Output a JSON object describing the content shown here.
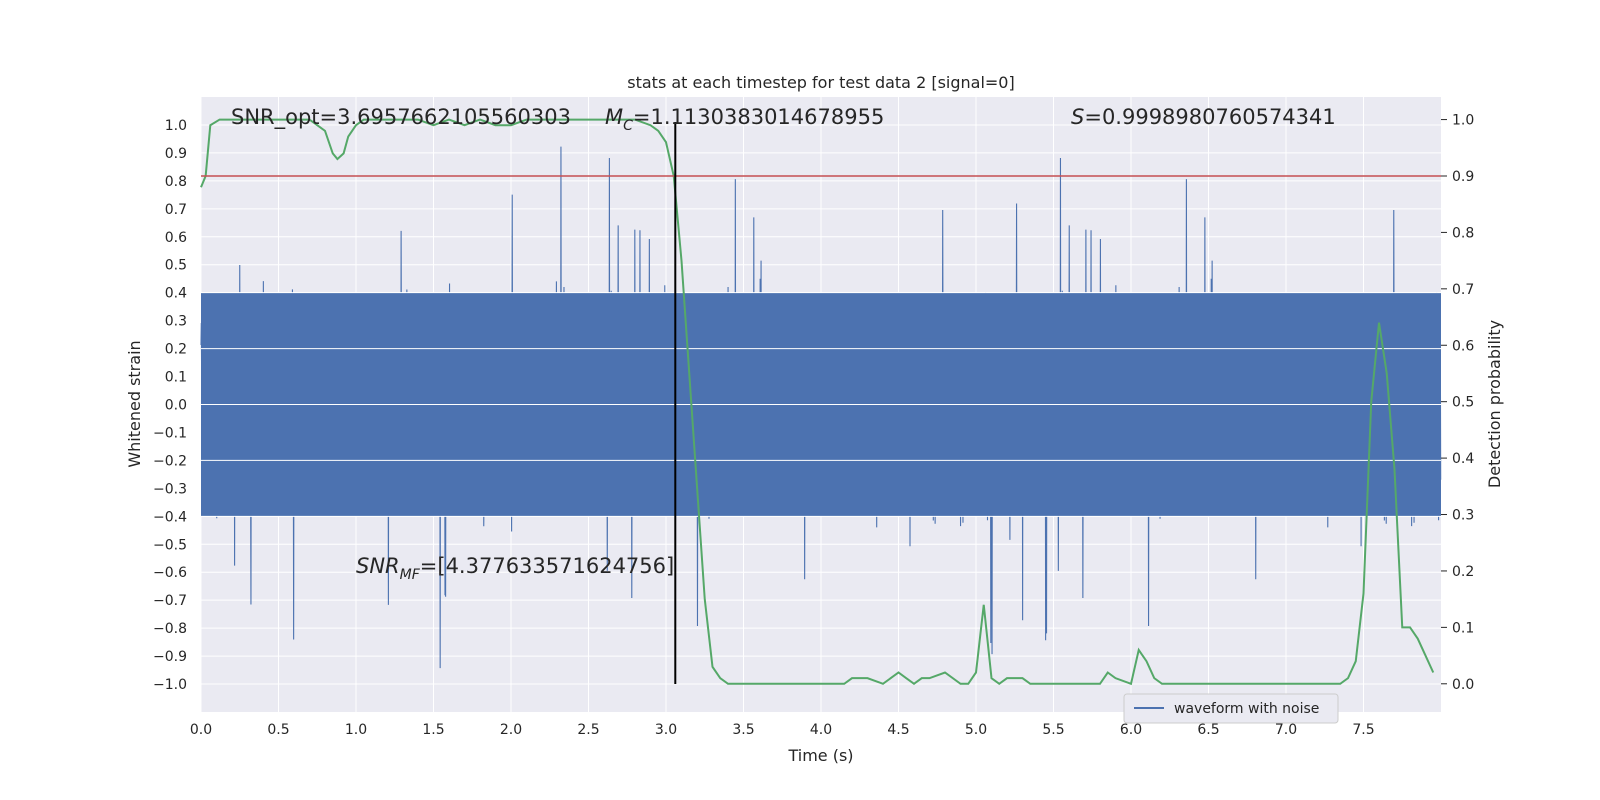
{
  "chart_data": {
    "type": "line",
    "title": "stats at each timestep for test data 2 [signal=0]",
    "xlabel": "Time (s)",
    "ylabel_left": "Whitened strain",
    "ylabel_right": "Detection probability",
    "xlim": [
      0.0,
      8.0
    ],
    "ylim_left": [
      -1.1,
      1.1
    ],
    "ylim_right": [
      -0.05,
      1.04
    ],
    "x_ticks": [
      "0.0",
      "0.5",
      "1.0",
      "1.5",
      "2.0",
      "2.5",
      "3.0",
      "3.5",
      "4.0",
      "4.5",
      "5.0",
      "5.5",
      "6.0",
      "6.5",
      "7.0",
      "7.5"
    ],
    "x_tick_values": [
      0.0,
      0.5,
      1.0,
      1.5,
      2.0,
      2.5,
      3.0,
      3.5,
      4.0,
      4.5,
      5.0,
      5.5,
      6.0,
      6.5,
      7.0,
      7.5
    ],
    "y_left_ticks": [
      "1.0",
      "0.9",
      "0.8",
      "0.7",
      "0.6",
      "0.5",
      "0.4",
      "0.3",
      "0.2",
      "0.1",
      "0.0",
      "−0.1",
      "−0.2",
      "−0.3",
      "−0.4",
      "−0.5",
      "−0.6",
      "−0.7",
      "−0.8",
      "−0.9",
      "−1.0"
    ],
    "y_left_tick_values": [
      1.0,
      0.9,
      0.8,
      0.7,
      0.6,
      0.5,
      0.4,
      0.3,
      0.2,
      0.1,
      0.0,
      -0.1,
      -0.2,
      -0.3,
      -0.4,
      -0.5,
      -0.6,
      -0.7,
      -0.8,
      -0.9,
      -1.0
    ],
    "y_right_ticks": [
      "1.0",
      "0.9",
      "0.8",
      "0.7",
      "0.6",
      "0.5",
      "0.4",
      "0.3",
      "0.2",
      "0.1",
      "0.0"
    ],
    "y_right_tick_values": [
      1.0,
      0.9,
      0.8,
      0.7,
      0.6,
      0.5,
      0.4,
      0.3,
      0.2,
      0.1,
      0.0
    ],
    "threshold": {
      "axis": "right",
      "value": 0.9,
      "color": "#c44e52"
    },
    "vertical_marker": {
      "x": 3.06,
      "color": "#000000"
    },
    "annotations": {
      "snr_opt": "SNR_opt=3.6957662105560303",
      "mc_symbol": "M",
      "mc_sub": "C",
      "mc_value": "=1.1130383014678955",
      "s_symbol": "S",
      "s_value": "=0.9998980760574341",
      "snr_mf_symbol": "SNR",
      "snr_mf_sub": "MF",
      "snr_mf_value": "=[4.377633571624756]"
    },
    "series": [
      {
        "name": "waveform with noise",
        "axis": "left",
        "color": "#4c72b0",
        "style": "dense noise",
        "sample_rate_hz": 512,
        "core_amplitude": 0.4,
        "peak_max": 0.97,
        "peak_min": -0.99
      },
      {
        "name": "detection probability",
        "axis": "right",
        "color": "#55a868",
        "x": [
          0.0,
          0.03,
          0.06,
          0.12,
          0.2,
          0.3,
          0.4,
          0.5,
          0.6,
          0.7,
          0.75,
          0.8,
          0.85,
          0.88,
          0.92,
          0.95,
          1.0,
          1.05,
          1.1,
          1.2,
          1.3,
          1.4,
          1.5,
          1.6,
          1.7,
          1.8,
          1.9,
          2.0,
          2.1,
          2.2,
          2.3,
          2.4,
          2.5,
          2.6,
          2.7,
          2.8,
          2.9,
          2.95,
          3.0,
          3.05,
          3.1,
          3.15,
          3.2,
          3.25,
          3.3,
          3.35,
          3.4,
          3.5,
          3.6,
          3.7,
          3.8,
          3.9,
          4.0,
          4.05,
          4.1,
          4.15,
          4.2,
          4.3,
          4.4,
          4.5,
          4.55,
          4.6,
          4.65,
          4.7,
          4.8,
          4.9,
          4.95,
          5.0,
          5.05,
          5.1,
          5.15,
          5.2,
          5.3,
          5.35,
          5.4,
          5.5,
          5.6,
          5.7,
          5.75,
          5.8,
          5.85,
          5.9,
          6.0,
          6.05,
          6.1,
          6.15,
          6.2,
          6.3,
          6.4,
          6.5,
          6.6,
          6.7,
          6.8,
          6.9,
          7.0,
          7.1,
          7.2,
          7.3,
          7.35,
          7.4,
          7.45,
          7.5,
          7.55,
          7.6,
          7.65,
          7.7,
          7.75,
          7.8,
          7.85,
          7.9,
          7.95
        ],
        "y": [
          0.88,
          0.9,
          0.99,
          1.0,
          1.0,
          1.0,
          1.0,
          1.0,
          1.0,
          1.0,
          0.99,
          0.98,
          0.94,
          0.93,
          0.94,
          0.97,
          0.99,
          1.0,
          1.0,
          1.0,
          1.0,
          1.0,
          0.99,
          1.0,
          0.99,
          1.0,
          0.99,
          0.99,
          1.0,
          1.0,
          1.0,
          1.0,
          1.0,
          1.0,
          1.0,
          1.0,
          0.99,
          0.98,
          0.96,
          0.9,
          0.75,
          0.55,
          0.35,
          0.15,
          0.03,
          0.01,
          0.0,
          0.0,
          0.0,
          0.0,
          0.0,
          0.0,
          0.0,
          0.0,
          0.0,
          0.0,
          0.01,
          0.01,
          0.0,
          0.02,
          0.01,
          0.0,
          0.01,
          0.01,
          0.02,
          0.0,
          0.0,
          0.02,
          0.14,
          0.01,
          0.0,
          0.01,
          0.01,
          0.0,
          0.0,
          0.0,
          0.0,
          0.0,
          0.0,
          0.0,
          0.02,
          0.01,
          0.0,
          0.06,
          0.04,
          0.01,
          0.0,
          0.0,
          0.0,
          0.0,
          0.0,
          0.0,
          0.0,
          0.0,
          0.0,
          0.0,
          0.0,
          0.0,
          0.0,
          0.01,
          0.04,
          0.16,
          0.5,
          0.64,
          0.55,
          0.38,
          0.1,
          0.1,
          0.08,
          0.05,
          0.02
        ]
      }
    ],
    "legend": {
      "placement": "lower-right",
      "entries": [
        "waveform with noise"
      ]
    },
    "grid": true
  }
}
